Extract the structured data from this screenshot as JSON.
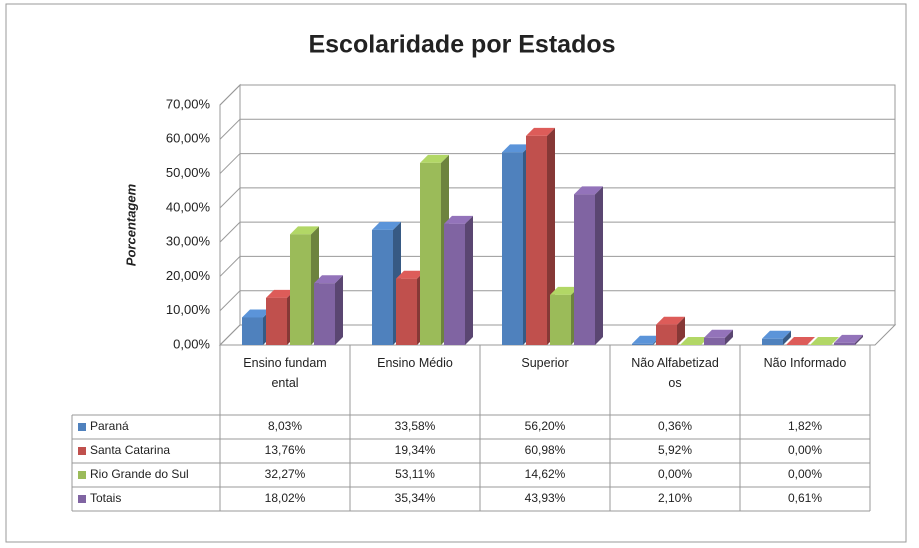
{
  "chart_data": {
    "type": "bar3d",
    "title": "Escolaridade por Estados",
    "y_label": "Porcentagem",
    "categories": [
      "Ensino fundamental",
      "Ensino Médio",
      "Superior",
      "Não Alfabetizados",
      "Não Informado"
    ],
    "series": [
      {
        "name": "Paraná",
        "color": "#4f81bd",
        "values": [
          8.03,
          33.58,
          56.2,
          0.36,
          1.82
        ],
        "value_labels": [
          "8,03%",
          "33,58%",
          "56,20%",
          "0,36%",
          "1,82%"
        ]
      },
      {
        "name": "Santa Catarina",
        "color": "#c0504d",
        "values": [
          13.76,
          19.34,
          60.98,
          5.92,
          0
        ],
        "value_labels": [
          "13,76%",
          "19,34%",
          "60,98%",
          "5,92%",
          "0,00%"
        ]
      },
      {
        "name": "Rio Grande do Sul",
        "color": "#9bbb59",
        "values": [
          32.27,
          53.11,
          14.62,
          0,
          0
        ],
        "value_labels": [
          "32,27%",
          "53,11%",
          "14,62%",
          "0,00%",
          "0,00%"
        ]
      },
      {
        "name": "Totais",
        "color": "#8064a2",
        "values": [
          18.02,
          35.34,
          43.93,
          2.1,
          0.61
        ],
        "value_labels": [
          "18,02%",
          "35,34%",
          "43,93%",
          "2,10%",
          "0,61%"
        ]
      }
    ],
    "ylim": [
      0,
      70
    ],
    "yticks": [
      {
        "value": 0,
        "label": "0,00%"
      },
      {
        "value": 10,
        "label": "10,00%"
      },
      {
        "value": 20,
        "label": "20,00%"
      },
      {
        "value": 30,
        "label": "30,00%"
      },
      {
        "value": 40,
        "label": "40,00%"
      },
      {
        "value": 50,
        "label": "50,00%"
      },
      {
        "value": 60,
        "label": "60,00%"
      },
      {
        "value": 70,
        "label": "70,00%"
      }
    ],
    "grid": true
  }
}
